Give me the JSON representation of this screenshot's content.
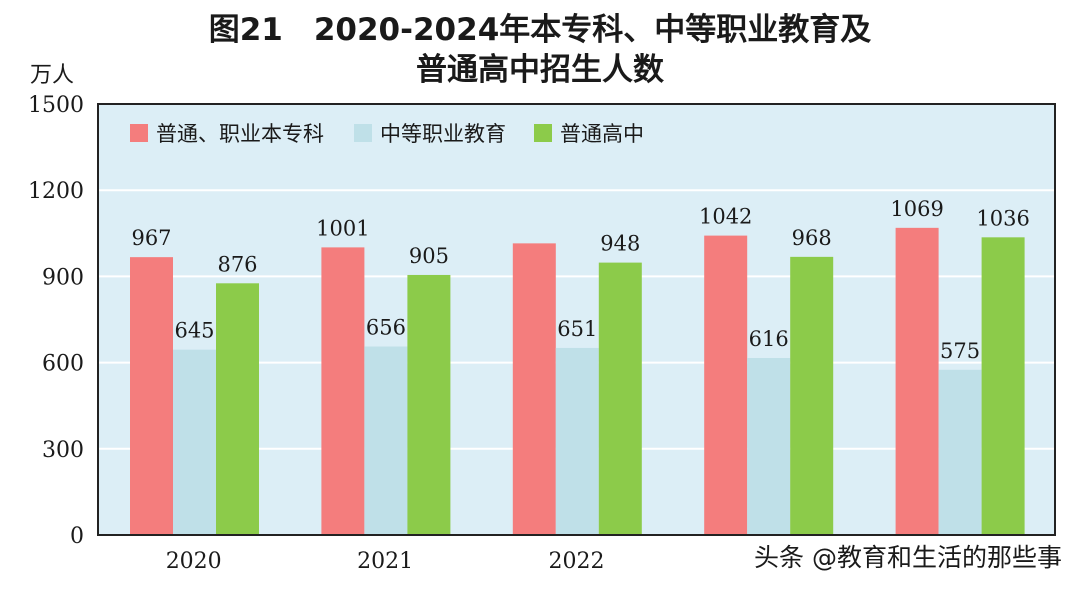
{
  "chart_data": {
    "type": "bar",
    "title_line1": "图21　2020-2024年本专科、中等职业教育及",
    "title_line2": "普通高中招生人数",
    "ylabel": "万人",
    "ylim": [
      0,
      1500
    ],
    "yticks": [
      0,
      300,
      600,
      900,
      1200,
      1500
    ],
    "grid": true,
    "legend_position": "top-left",
    "categories": [
      "2020",
      "2021",
      "2022",
      "",
      ""
    ],
    "series": [
      {
        "name": "普通、职业本专科",
        "color": "#f47d7d",
        "values": [
          967,
          1001,
          1015,
          1042,
          1069
        ],
        "labels": [
          "967",
          "1001",
          "",
          "1042",
          "1069"
        ]
      },
      {
        "name": "中等职业教育",
        "color": "#bfe0e8",
        "values": [
          645,
          656,
          651,
          616,
          575
        ],
        "labels": [
          "645",
          "656",
          "651",
          "616",
          "575"
        ]
      },
      {
        "name": "普通高中",
        "color": "#8ccb4a",
        "values": [
          876,
          905,
          948,
          968,
          1036
        ],
        "labels": [
          "876",
          "905",
          "948",
          "968",
          "1036"
        ]
      }
    ]
  },
  "watermark": "头条 @教育和生活的那些事"
}
